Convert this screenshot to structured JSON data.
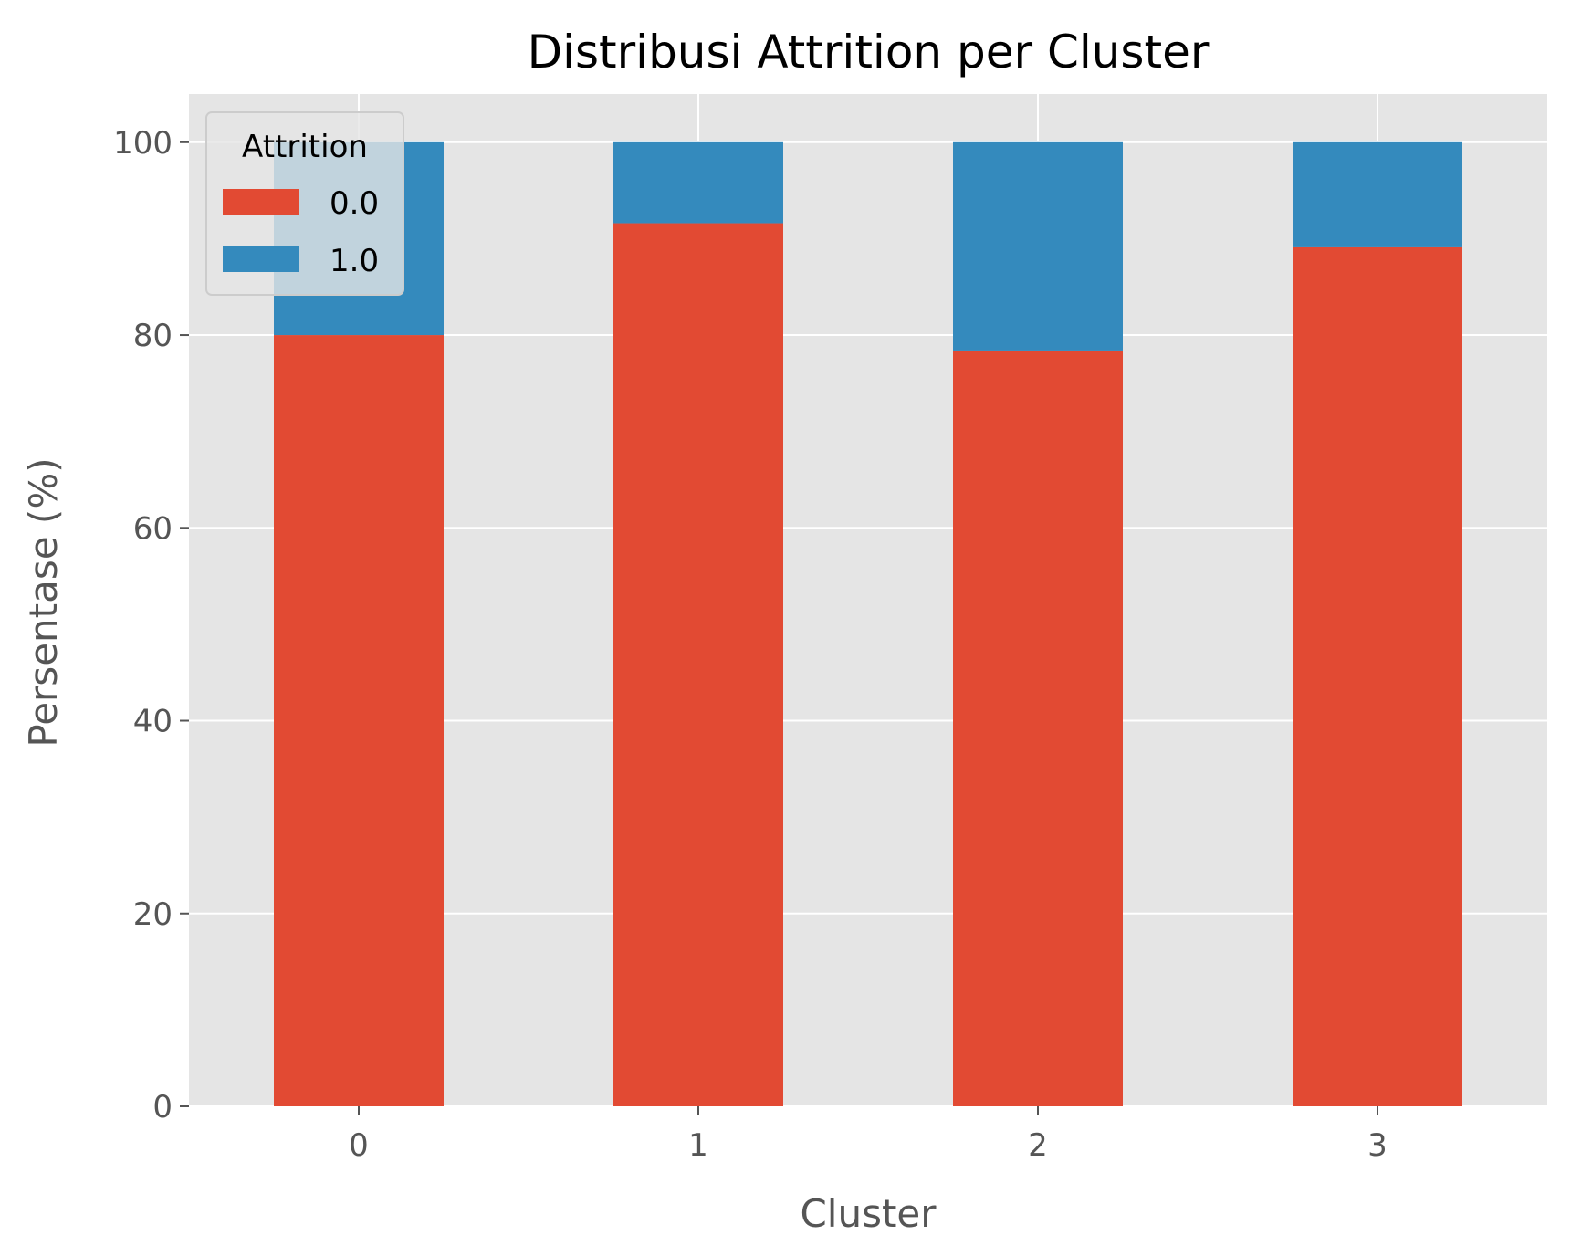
{
  "chart_data": {
    "type": "bar",
    "stacked": true,
    "title": "Distribusi Attrition per Cluster",
    "xlabel": "Cluster",
    "ylabel": "Persentase (%)",
    "categories": [
      "0",
      "1",
      "2",
      "3"
    ],
    "series": [
      {
        "name": "0.0",
        "values": [
          80.0,
          91.6,
          78.4,
          89.1
        ],
        "color": "#E24A33"
      },
      {
        "name": "1.0",
        "values": [
          20.0,
          8.4,
          21.6,
          10.9
        ],
        "color": "#348ABD"
      }
    ],
    "ylim": [
      0,
      105
    ],
    "yticks": [
      0,
      20,
      40,
      60,
      80,
      100
    ],
    "grid": true,
    "legend": {
      "title": "Attrition",
      "placement": "top-left"
    },
    "colors": {
      "plot_background": "#E5E5E5",
      "grid": "#FFFFFF",
      "tick_text": "#555555",
      "title_text": "#000000"
    }
  }
}
